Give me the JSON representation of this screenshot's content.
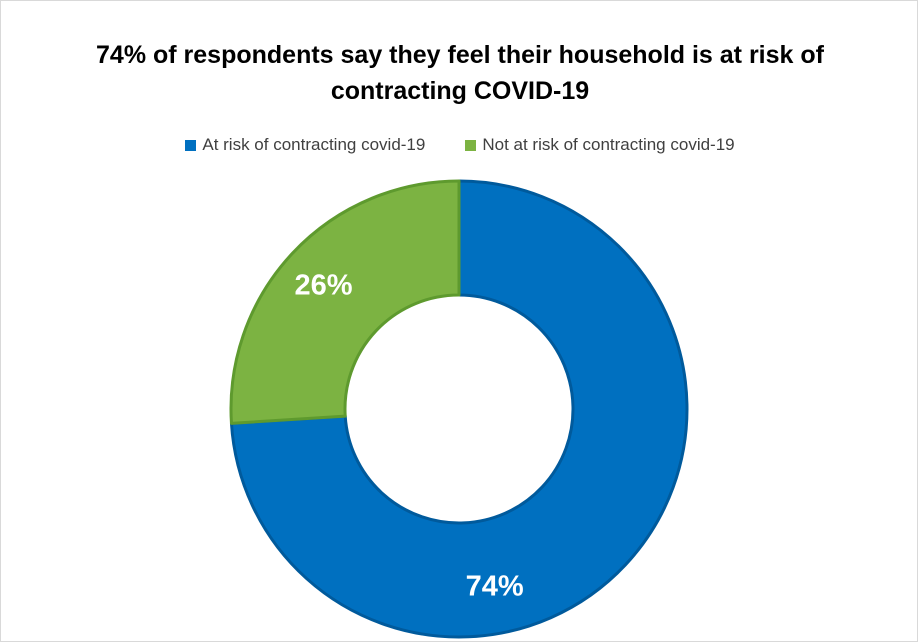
{
  "chart_data": {
    "type": "pie",
    "variant": "donut",
    "title_lines": [
      "74% of respondents say they feel their household is at risk of",
      "contracting COVID-19"
    ],
    "legend_position": "top",
    "slices": [
      {
        "name": "At risk of contracting covid-19",
        "value": 74,
        "label": "74%",
        "color": "#0070C0"
      },
      {
        "name": "Not at risk of contracting covid-19",
        "value": 26,
        "label": "26%",
        "color": "#7CB342"
      }
    ]
  }
}
